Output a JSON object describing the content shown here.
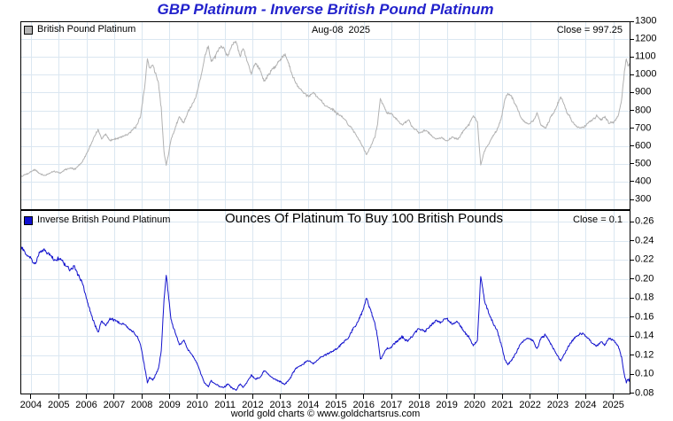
{
  "title": "GBP Platinum - Inverse British Pound Platinum",
  "footer": "world gold charts © www.goldchartsrus.com",
  "top_panel": {
    "legend": "British Pound Platinum",
    "date_label": "Aug-08  2025",
    "close_label": "Close = 997.25"
  },
  "bottom_panel": {
    "legend": "Inverse British Pound Platinum",
    "title": "Ounces Of Platinum To Buy 100 British Pounds",
    "close_label": "Close = 0.1"
  },
  "colors": {
    "title_blue": "#2222cc",
    "top_line": "#b2b2b2",
    "bottom_line": "#1212cd",
    "grid": "#dbe7f1",
    "axis": "#000000",
    "top_swatch": "#b4b4b4",
    "bottom_swatch": "#0f0fd0"
  },
  "chart_data": [
    {
      "type": "line",
      "name": "British Pound Platinum",
      "panel": "top",
      "color": "#b2b2b2",
      "seed": 7,
      "close": 997.25,
      "last_date": "Aug-08 2025",
      "xlim": [
        2003.62,
        2025.62
      ],
      "xticks": [
        2004,
        2005,
        2006,
        2007,
        2008,
        2009,
        2010,
        2011,
        2012,
        2013,
        2014,
        2015,
        2016,
        2017,
        2018,
        2019,
        2020,
        2021,
        2022,
        2023,
        2024,
        2025
      ],
      "ylim": [
        300,
        1300
      ],
      "yticks": [
        1300,
        1200,
        1100,
        1000,
        900,
        800,
        700,
        600,
        500,
        400,
        300
      ],
      "legend_position": "top-left",
      "grid": true,
      "x": [
        2003.62,
        2003.8,
        2004.0,
        2004.15,
        2004.3,
        2004.5,
        2004.7,
        2004.9,
        2005.05,
        2005.2,
        2005.4,
        2005.55,
        2005.7,
        2005.85,
        2006.0,
        2006.15,
        2006.3,
        2006.42,
        2006.55,
        2006.7,
        2006.85,
        2007.0,
        2007.2,
        2007.4,
        2007.6,
        2007.8,
        2007.95,
        2008.1,
        2008.2,
        2008.28,
        2008.4,
        2008.5,
        2008.6,
        2008.7,
        2008.8,
        2008.88,
        2008.95,
        2009.05,
        2009.2,
        2009.35,
        2009.5,
        2009.65,
        2009.8,
        2009.95,
        2010.1,
        2010.25,
        2010.4,
        2010.5,
        2010.65,
        2010.8,
        2010.95,
        2011.1,
        2011.25,
        2011.4,
        2011.55,
        2011.65,
        2011.8,
        2011.95,
        2012.1,
        2012.25,
        2012.4,
        2012.55,
        2012.7,
        2012.85,
        2013.0,
        2013.15,
        2013.3,
        2013.45,
        2013.6,
        2013.8,
        2014.0,
        2014.2,
        2014.4,
        2014.6,
        2014.8,
        2015.0,
        2015.2,
        2015.4,
        2015.6,
        2015.8,
        2016.0,
        2016.1,
        2016.25,
        2016.4,
        2016.5,
        2016.6,
        2016.72,
        2016.85,
        2017.0,
        2017.2,
        2017.4,
        2017.6,
        2017.8,
        2018.0,
        2018.2,
        2018.4,
        2018.6,
        2018.8,
        2019.0,
        2019.2,
        2019.4,
        2019.6,
        2019.8,
        2019.95,
        2020.1,
        2020.22,
        2020.35,
        2020.5,
        2020.65,
        2020.8,
        2020.95,
        2021.1,
        2021.2,
        2021.35,
        2021.5,
        2021.65,
        2021.8,
        2021.95,
        2022.1,
        2022.25,
        2022.4,
        2022.55,
        2022.7,
        2022.85,
        2023.0,
        2023.1,
        2023.2,
        2023.35,
        2023.5,
        2023.65,
        2023.8,
        2023.95,
        2024.1,
        2024.25,
        2024.4,
        2024.55,
        2024.7,
        2024.85,
        2025.0,
        2025.1,
        2025.2,
        2025.3,
        2025.4,
        2025.47,
        2025.53,
        2025.58,
        2025.62
      ],
      "values": [
        425,
        440,
        452,
        468,
        445,
        432,
        448,
        455,
        448,
        462,
        478,
        468,
        488,
        505,
        555,
        605,
        655,
        690,
        638,
        662,
        628,
        636,
        648,
        660,
        678,
        706,
        760,
        930,
        1095,
        1030,
        1060,
        1005,
        945,
        810,
        565,
        492,
        540,
        635,
        700,
        765,
        735,
        785,
        825,
        880,
        975,
        1090,
        1155,
        1075,
        1105,
        1145,
        1155,
        1115,
        1175,
        1190,
        1105,
        1155,
        1085,
        1010,
        1065,
        1040,
        965,
        990,
        1030,
        1055,
        1085,
        1110,
        1065,
        985,
        935,
        905,
        875,
        892,
        858,
        832,
        812,
        792,
        762,
        732,
        685,
        645,
        585,
        552,
        595,
        650,
        718,
        868,
        828,
        788,
        778,
        748,
        722,
        742,
        702,
        672,
        692,
        662,
        635,
        645,
        628,
        652,
        642,
        688,
        718,
        772,
        738,
        492,
        565,
        612,
        652,
        685,
        748,
        872,
        905,
        868,
        822,
        762,
        742,
        722,
        742,
        782,
        722,
        702,
        742,
        788,
        838,
        878,
        842,
        782,
        742,
        712,
        698,
        705,
        732,
        752,
        772,
        742,
        762,
        722,
        732,
        752,
        782,
        855,
        1005,
        1085,
        1048,
        1070,
        997.25
      ]
    },
    {
      "type": "line",
      "name": "Inverse British Pound Platinum",
      "panel": "bottom",
      "color": "#1212cd",
      "seed": 13,
      "close": 0.1,
      "last_date": "Aug-08 2025",
      "xlim": [
        2003.62,
        2025.62
      ],
      "xticks": [
        2004,
        2005,
        2006,
        2007,
        2008,
        2009,
        2010,
        2011,
        2012,
        2013,
        2014,
        2015,
        2016,
        2017,
        2018,
        2019,
        2020,
        2021,
        2022,
        2023,
        2024,
        2025
      ],
      "ylim": [
        0.08,
        0.26
      ],
      "yticks": [
        0.26,
        0.24,
        0.22,
        0.2,
        0.18,
        0.16,
        0.14,
        0.12,
        0.1,
        0.08
      ],
      "legend_position": "top-left",
      "grid": true,
      "x": [
        2003.62,
        2003.8,
        2004.0,
        2004.15,
        2004.3,
        2004.5,
        2004.7,
        2004.9,
        2005.05,
        2005.2,
        2005.4,
        2005.55,
        2005.7,
        2005.85,
        2006.0,
        2006.15,
        2006.3,
        2006.42,
        2006.55,
        2006.7,
        2006.85,
        2007.0,
        2007.2,
        2007.4,
        2007.6,
        2007.8,
        2007.95,
        2008.1,
        2008.2,
        2008.28,
        2008.4,
        2008.5,
        2008.6,
        2008.7,
        2008.8,
        2008.88,
        2008.95,
        2009.05,
        2009.2,
        2009.35,
        2009.5,
        2009.65,
        2009.8,
        2009.95,
        2010.1,
        2010.25,
        2010.4,
        2010.5,
        2010.65,
        2010.8,
        2010.95,
        2011.1,
        2011.25,
        2011.4,
        2011.55,
        2011.65,
        2011.8,
        2011.95,
        2012.1,
        2012.25,
        2012.4,
        2012.55,
        2012.7,
        2012.85,
        2013.0,
        2013.15,
        2013.3,
        2013.45,
        2013.6,
        2013.8,
        2014.0,
        2014.2,
        2014.4,
        2014.6,
        2014.8,
        2015.0,
        2015.2,
        2015.4,
        2015.6,
        2015.8,
        2016.0,
        2016.1,
        2016.25,
        2016.4,
        2016.5,
        2016.6,
        2016.72,
        2016.85,
        2017.0,
        2017.2,
        2017.4,
        2017.6,
        2017.8,
        2018.0,
        2018.2,
        2018.4,
        2018.6,
        2018.8,
        2019.0,
        2019.2,
        2019.4,
        2019.6,
        2019.8,
        2019.95,
        2020.1,
        2020.22,
        2020.35,
        2020.5,
        2020.65,
        2020.8,
        2020.95,
        2021.1,
        2021.2,
        2021.35,
        2021.5,
        2021.65,
        2021.8,
        2021.95,
        2022.1,
        2022.25,
        2022.4,
        2022.55,
        2022.7,
        2022.85,
        2023.0,
        2023.1,
        2023.2,
        2023.35,
        2023.5,
        2023.65,
        2023.8,
        2023.95,
        2024.1,
        2024.25,
        2024.4,
        2024.55,
        2024.7,
        2024.85,
        2025.0,
        2025.1,
        2025.2,
        2025.3,
        2025.4,
        2025.47,
        2025.53,
        2025.58,
        2025.62
      ],
      "values": [
        0.2353,
        0.2273,
        0.2212,
        0.2137,
        0.2247,
        0.2315,
        0.2232,
        0.2198,
        0.2232,
        0.2165,
        0.2092,
        0.2137,
        0.2049,
        0.198,
        0.1802,
        0.1653,
        0.1527,
        0.1449,
        0.1567,
        0.1511,
        0.1592,
        0.1572,
        0.1543,
        0.1515,
        0.1475,
        0.1416,
        0.1316,
        0.1075,
        0.0913,
        0.0971,
        0.0943,
        0.0995,
        0.1058,
        0.1235,
        0.177,
        0.2033,
        0.1852,
        0.1575,
        0.1429,
        0.1307,
        0.1361,
        0.1274,
        0.1212,
        0.1136,
        0.1026,
        0.0917,
        0.0866,
        0.093,
        0.0905,
        0.0873,
        0.0866,
        0.0897,
        0.0851,
        0.084,
        0.0905,
        0.0866,
        0.0922,
        0.099,
        0.0939,
        0.0962,
        0.1036,
        0.101,
        0.0971,
        0.0948,
        0.0922,
        0.0901,
        0.0939,
        0.1015,
        0.107,
        0.1105,
        0.1143,
        0.1121,
        0.1166,
        0.1202,
        0.1232,
        0.1263,
        0.1312,
        0.1366,
        0.146,
        0.155,
        0.1709,
        0.1812,
        0.1681,
        0.1538,
        0.1393,
        0.1152,
        0.1208,
        0.1269,
        0.1285,
        0.1337,
        0.1385,
        0.1348,
        0.1425,
        0.1488,
        0.1445,
        0.1511,
        0.1575,
        0.155,
        0.1592,
        0.1534,
        0.1558,
        0.1453,
        0.1393,
        0.1295,
        0.1355,
        0.2033,
        0.177,
        0.1634,
        0.1534,
        0.146,
        0.1337,
        0.1147,
        0.1105,
        0.1152,
        0.1217,
        0.1312,
        0.1348,
        0.1385,
        0.1348,
        0.1279,
        0.1385,
        0.1425,
        0.1348,
        0.1269,
        0.1193,
        0.1139,
        0.1188,
        0.1279,
        0.1348,
        0.1404,
        0.1433,
        0.1418,
        0.1366,
        0.133,
        0.1295,
        0.1348,
        0.1312,
        0.1385,
        0.1366,
        0.133,
        0.1279,
        0.117,
        0.0995,
        0.0922,
        0.0954,
        0.0935,
        0.1003
      ]
    }
  ]
}
